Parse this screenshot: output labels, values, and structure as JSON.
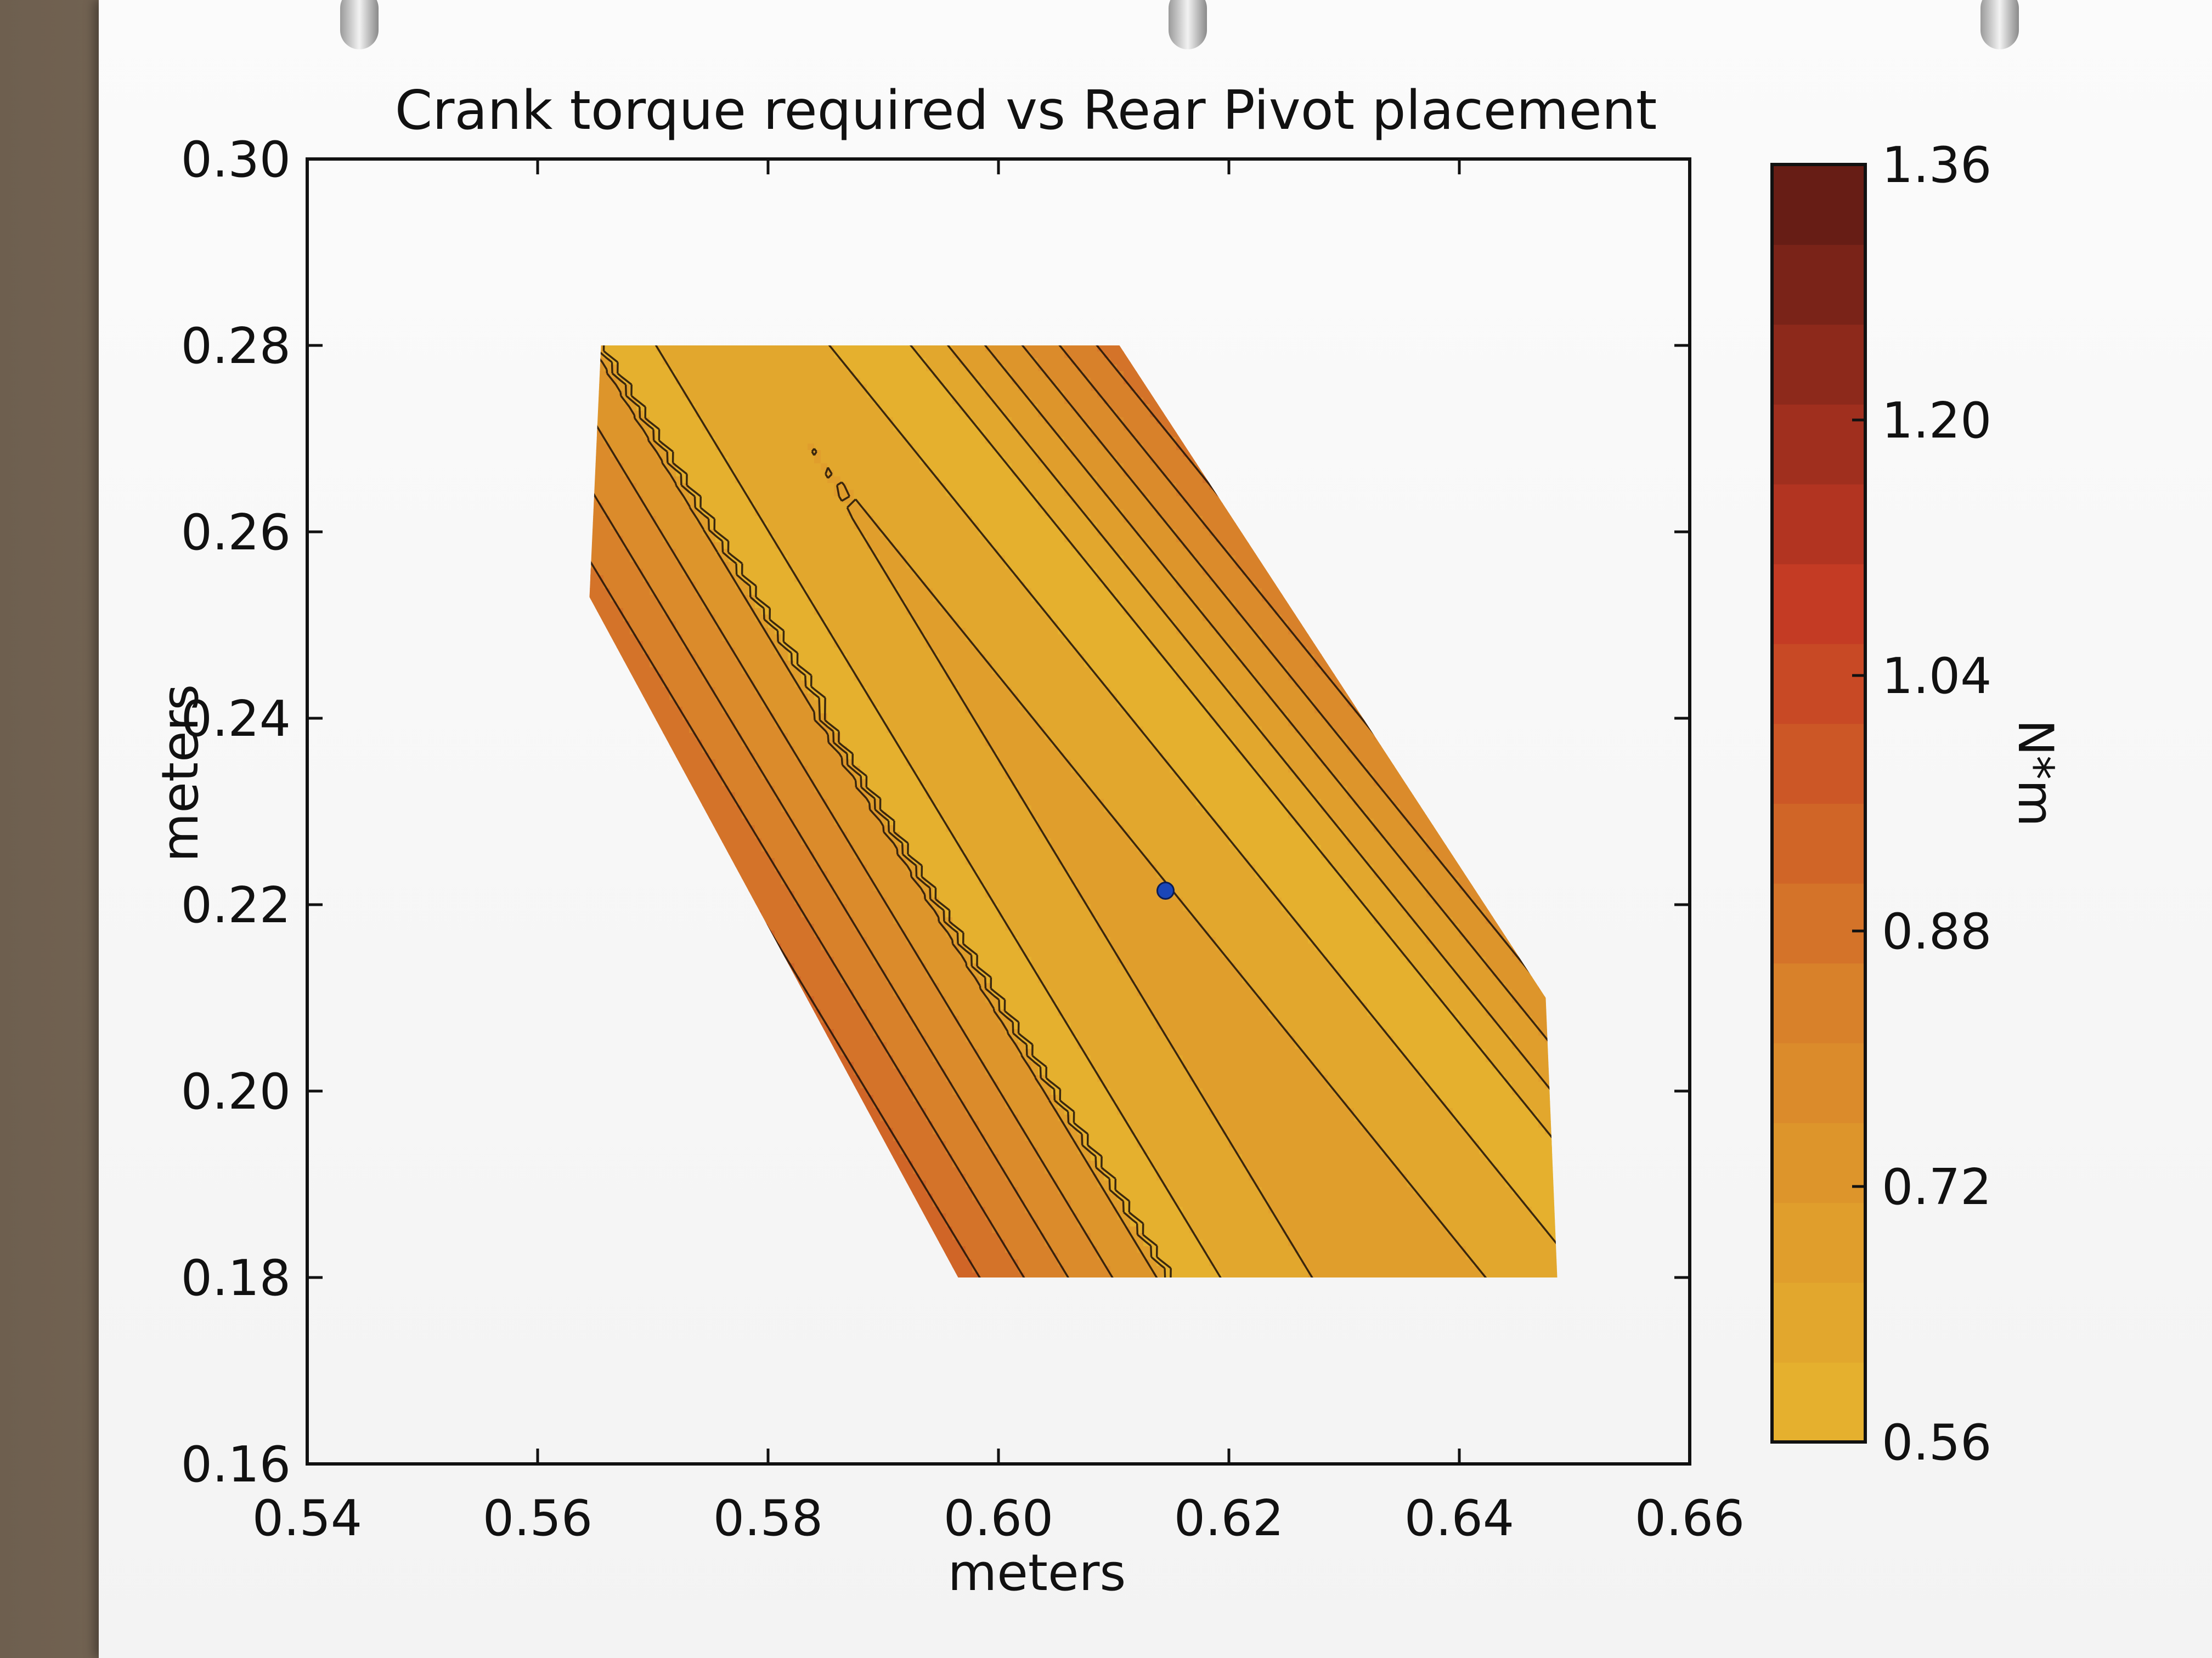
{
  "chart_data": {
    "type": "heatmap",
    "subtype": "filled-contour",
    "title": "Crank torque required vs Rear Pivot placement",
    "xlabel": "meters",
    "ylabel": "meters",
    "xlim": [
      0.54,
      0.66
    ],
    "ylim": [
      0.16,
      0.3
    ],
    "xticks": [
      "0.54",
      "0.56",
      "0.58",
      "0.60",
      "0.62",
      "0.64",
      "0.66"
    ],
    "yticks": [
      "0.16",
      "0.18",
      "0.20",
      "0.22",
      "0.24",
      "0.26",
      "0.28",
      "0.30"
    ],
    "colorbar": {
      "label": "N*m",
      "range": [
        0.56,
        1.36
      ],
      "ticks": [
        "0.56",
        "0.72",
        "0.88",
        "1.04",
        "1.20",
        "1.36"
      ],
      "levels": [
        0.56,
        0.61,
        0.66,
        0.71,
        0.76,
        0.81,
        0.86,
        0.91,
        0.96,
        1.01,
        1.06,
        1.11,
        1.16,
        1.21,
        1.26,
        1.31,
        1.36
      ]
    },
    "domain_polygon": [
      [
        0.5655,
        0.28
      ],
      [
        0.6105,
        0.28
      ],
      [
        0.6475,
        0.21
      ],
      [
        0.6485,
        0.18
      ],
      [
        0.5965,
        0.18
      ],
      [
        0.5645,
        0.253
      ]
    ],
    "valley": {
      "line_a": [
        [
          0.597,
          0.27
        ],
        [
          0.6625,
          0.17
        ]
      ],
      "line_b": [
        [
          0.5655,
          0.28
        ],
        [
          0.6145,
          0.18
        ]
      ]
    },
    "marker": {
      "x": 0.6145,
      "y": 0.2215
    }
  },
  "colors": {
    "low": "#e6b52e",
    "mid": "#d9842a",
    "high": "#c43a24",
    "max": "#5e1a14",
    "marker": "#1a46b8",
    "contour_line": "#1c1008"
  }
}
